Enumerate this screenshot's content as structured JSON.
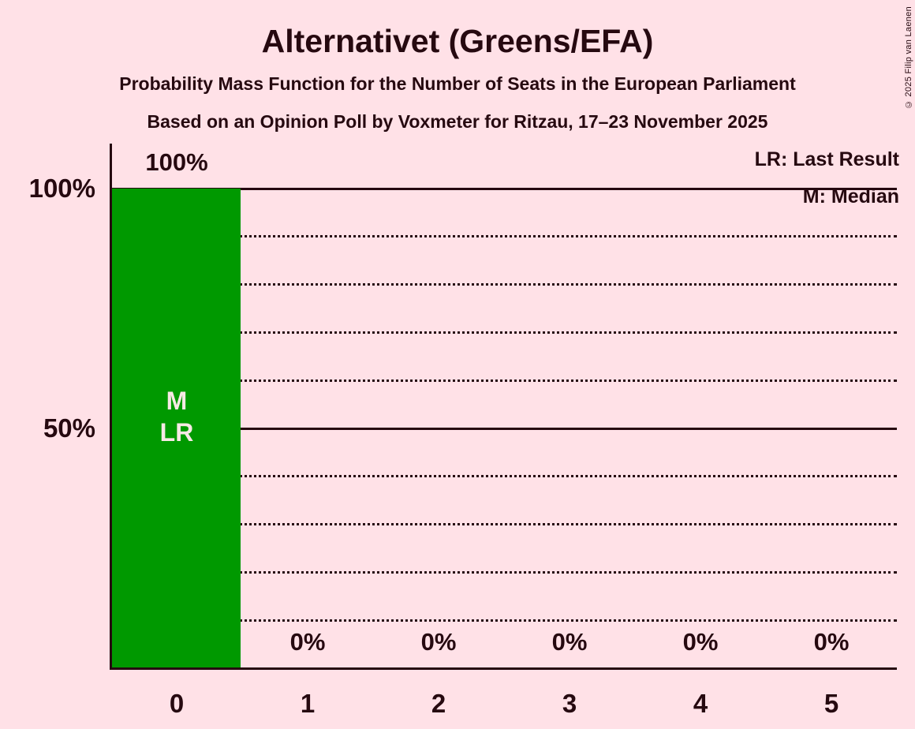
{
  "header": {
    "title": "Alternativet (Greens/EFA)",
    "subtitle_line1": "Probability Mass Function for the Number of Seats in the European Parliament",
    "subtitle_line2": "Based on an Opinion Poll by Voxmeter for Ritzau, 17–23 November 2025"
  },
  "legend": {
    "last_result": "LR: Last Result",
    "median": "M: Median"
  },
  "copyright": "© 2025 Filip van Laenen",
  "colors": {
    "background": "#FFE1E7",
    "bar": "#009900",
    "text": "#260910",
    "bar_annotation_text": "#F7E9E5"
  },
  "chart_data": {
    "type": "bar",
    "title": "Alternativet (Greens/EFA)",
    "xlabel": "",
    "ylabel": "",
    "categories": [
      "0",
      "1",
      "2",
      "3",
      "4",
      "5"
    ],
    "values": [
      100,
      0,
      0,
      0,
      0,
      0
    ],
    "bar_labels": [
      "100%",
      "0%",
      "0%",
      "0%",
      "0%",
      "0%"
    ],
    "ylim": [
      0,
      100
    ],
    "y_tick_labels": [
      {
        "label": "100%",
        "value": 100
      },
      {
        "label": "50%",
        "value": 50
      }
    ],
    "gridlines": {
      "solid_values": [
        100,
        50
      ],
      "dotted_values": [
        90,
        80,
        70,
        60,
        40,
        30,
        20,
        10
      ]
    },
    "legend_position": "top-right",
    "grid": true,
    "median_seats": 0,
    "last_result_seats": 0,
    "bar_annotations": [
      {
        "category_index": 0,
        "lines": [
          "M",
          "LR"
        ]
      }
    ]
  }
}
